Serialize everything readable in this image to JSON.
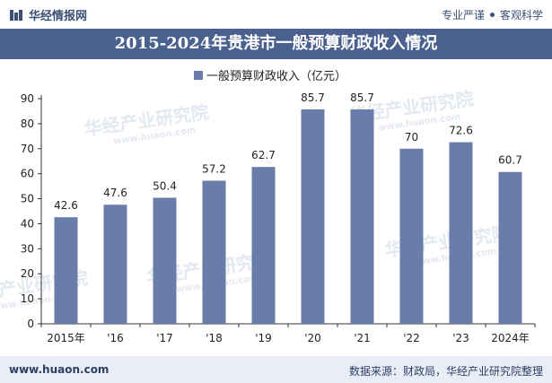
{
  "header": {
    "brand": "华经情报网",
    "tagline_left": "专业严谨",
    "tagline_right": "客观科学"
  },
  "title": "2015-2024年贵港市一般预算财政收入情况",
  "footer": {
    "website": "www.huaon.com",
    "source": "数据来源：财政局，华经产业研究院整理"
  },
  "watermark": {
    "text": "华经产业研究院",
    "url": "www.huaon.com"
  },
  "colors": {
    "bar": "#6a7ca9",
    "title_bg": "#4a6190",
    "footer_bg": "#e9edf5"
  },
  "chart_data": {
    "type": "bar",
    "categories": [
      "2015年",
      "'16",
      "'17",
      "'18",
      "'19",
      "'20",
      "'21",
      "'22",
      "'23",
      "2024年"
    ],
    "series": [
      {
        "name": "一般预算财政收入（亿元）",
        "values": [
          42.6,
          47.6,
          50.4,
          57.2,
          62.7,
          85.7,
          85.7,
          70,
          72.6,
          60.7
        ]
      }
    ],
    "ylim": [
      0,
      90
    ],
    "yticks": [
      0,
      10,
      20,
      30,
      40,
      50,
      60,
      70,
      80,
      90
    ],
    "legend_position": "top-center",
    "grid": false,
    "data_labels": true
  }
}
